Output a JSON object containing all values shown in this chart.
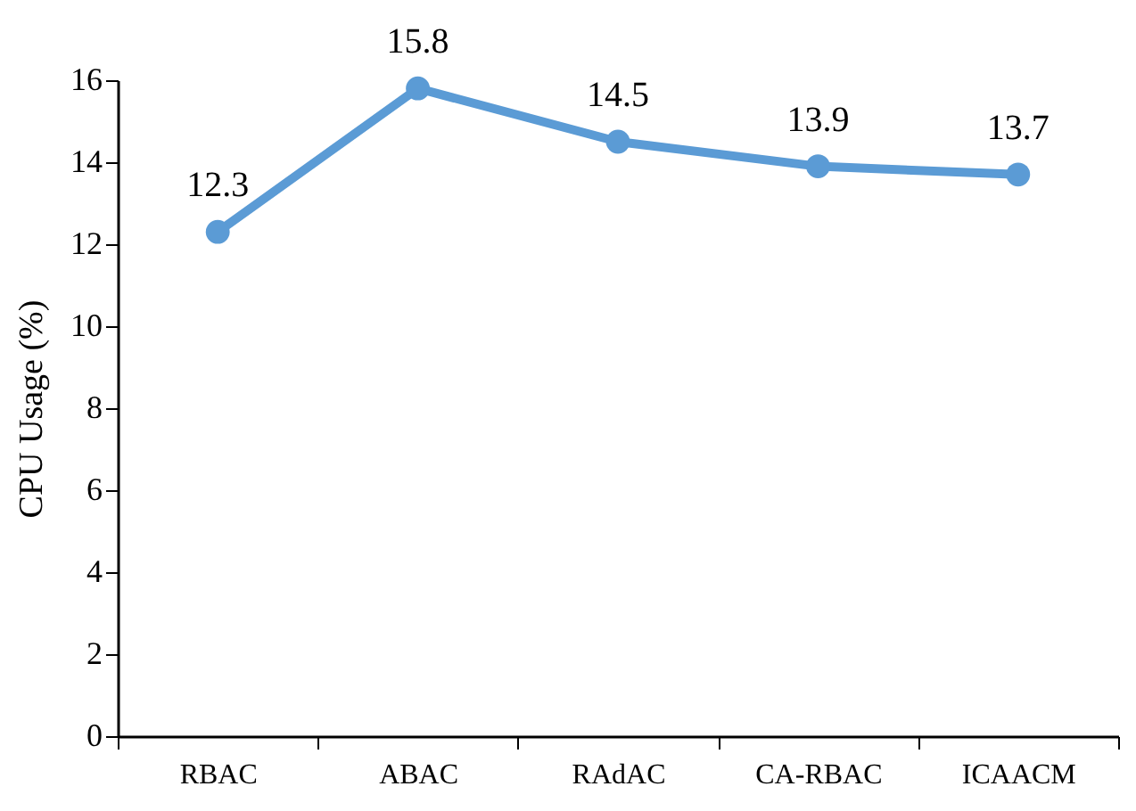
{
  "chart_data": {
    "type": "line",
    "ylabel": "CPU Usage (%)",
    "categories": [
      "RBAC",
      "ABAC",
      "RAdAC",
      "CA-RBAC",
      "ICAACM"
    ],
    "series": [
      {
        "color": "#5b9bd5",
        "values": [
          12.3,
          15.8,
          14.5,
          13.9,
          13.7
        ]
      }
    ],
    "ylim": [
      0,
      16
    ],
    "yticks": [
      0,
      2,
      4,
      6,
      8,
      10,
      12,
      14,
      16
    ],
    "grid": false,
    "marker": "circle",
    "line_style": "solid",
    "data_labels": true
  }
}
